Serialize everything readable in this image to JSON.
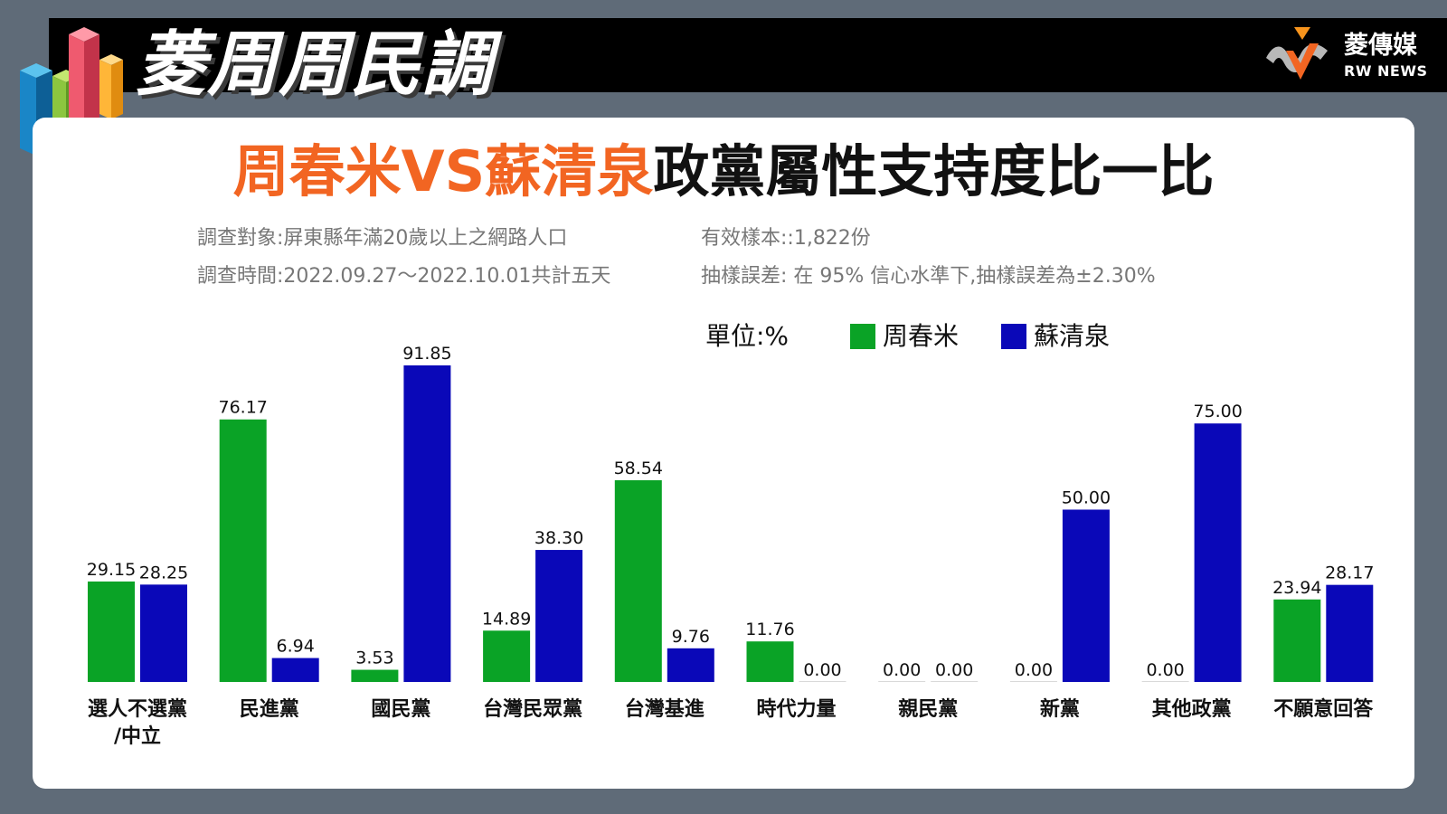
{
  "header": {
    "title": "菱周周民調",
    "brand_cn": "菱傳媒",
    "brand_en": "RW NEWS"
  },
  "headline": {
    "part1": "周春米VS蘇清泉",
    "part2": "政黨屬性支持度比一比",
    "accent_color": "#f26522"
  },
  "survey": {
    "target": "調查對象:屏東縣年滿20歲以上之網路人口",
    "period": "調查時間:2022.09.27～2022.10.01共計五天",
    "sample": "有效樣本::1,822份",
    "error": "抽樣誤差: 在 95% 信心水準下,抽樣誤差為±2.30%"
  },
  "legend": {
    "unit": "單位:%"
  },
  "chart_data": {
    "type": "bar",
    "categories": [
      "選人不選黨\n/中立",
      "民進黨",
      "國民黨",
      "台灣民眾黨",
      "台灣基進",
      "時代力量",
      "親民黨",
      "新黨",
      "其他政黨",
      "不願意回答"
    ],
    "series": [
      {
        "name": "周春米",
        "color": "#0aa326",
        "values": [
          29.15,
          76.17,
          3.53,
          14.89,
          58.54,
          11.76,
          0.0,
          0.0,
          0.0,
          23.94
        ]
      },
      {
        "name": "蘇清泉",
        "color": "#0a08b8",
        "values": [
          28.25,
          6.94,
          91.85,
          38.3,
          9.76,
          0.0,
          0.0,
          50.0,
          75.0,
          28.17
        ]
      }
    ],
    "ylim": [
      0,
      100
    ],
    "grid": false,
    "legend_position": "top-center",
    "data_labels": true
  }
}
